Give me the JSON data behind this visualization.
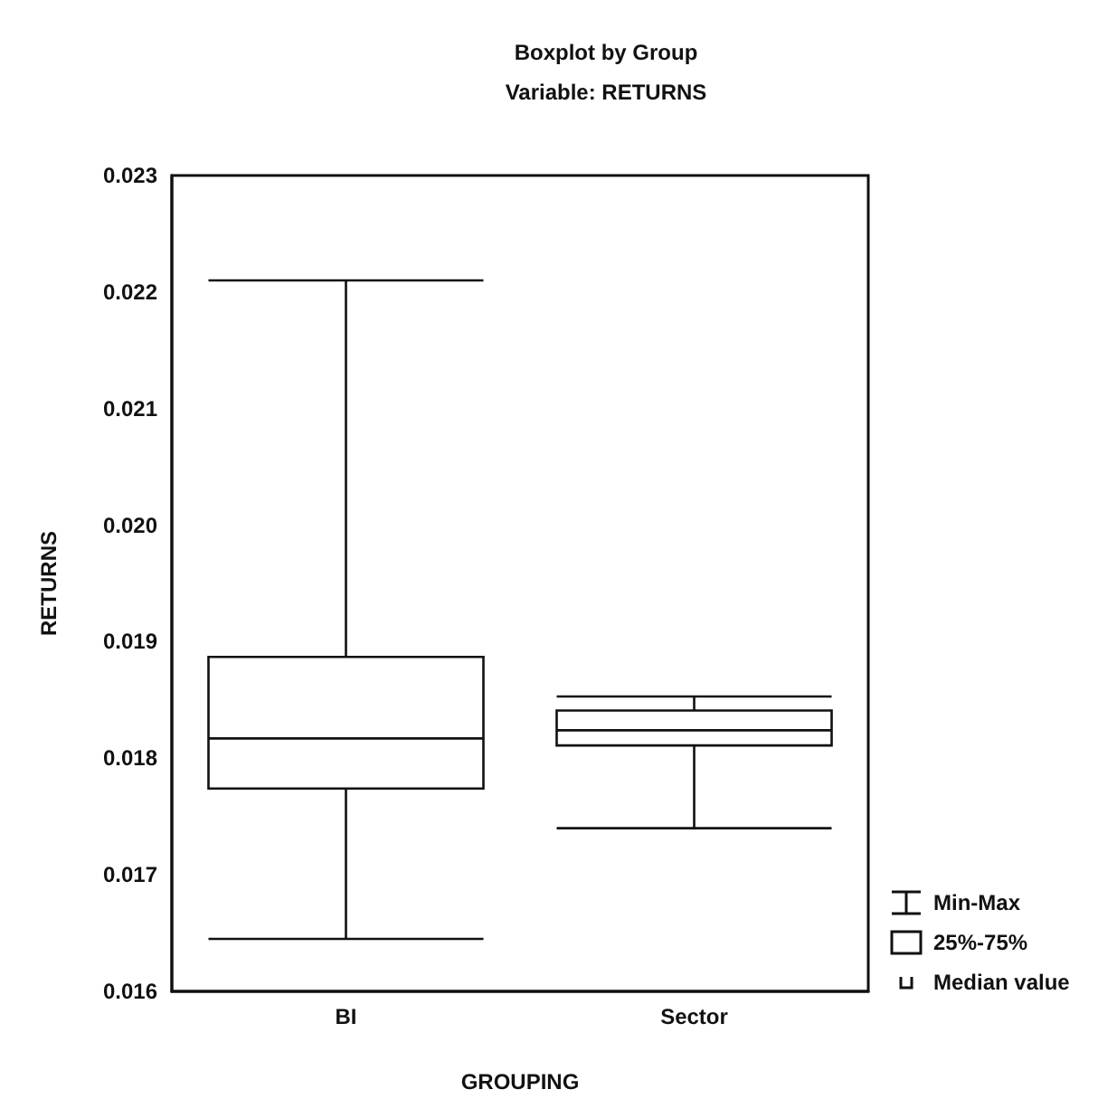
{
  "chart_data": {
    "type": "box",
    "title": "Boxplot by Group",
    "subtitle": "Variable: RETURNS",
    "xlabel": "GROUPING",
    "ylabel": "RETURNS",
    "categories": [
      "BI",
      "Sector"
    ],
    "boxes": [
      {
        "low": 0.01645,
        "q1": 0.01774,
        "median": 0.01817,
        "q3": 0.01887,
        "high": 0.0221
      },
      {
        "low": 0.0174,
        "q1": 0.01811,
        "median": 0.01824,
        "q3": 0.01841,
        "high": 0.01853
      }
    ],
    "ylim": [
      0.016,
      0.023
    ],
    "yticks": [
      0.016,
      0.017,
      0.018,
      0.019,
      {
        "value": 0.02,
        "label": "0.020"
      },
      0.021,
      0.022,
      0.023
    ],
    "grid": false,
    "annotations": [
      "Min-Max",
      "25%-75%",
      "Median value"
    ]
  }
}
